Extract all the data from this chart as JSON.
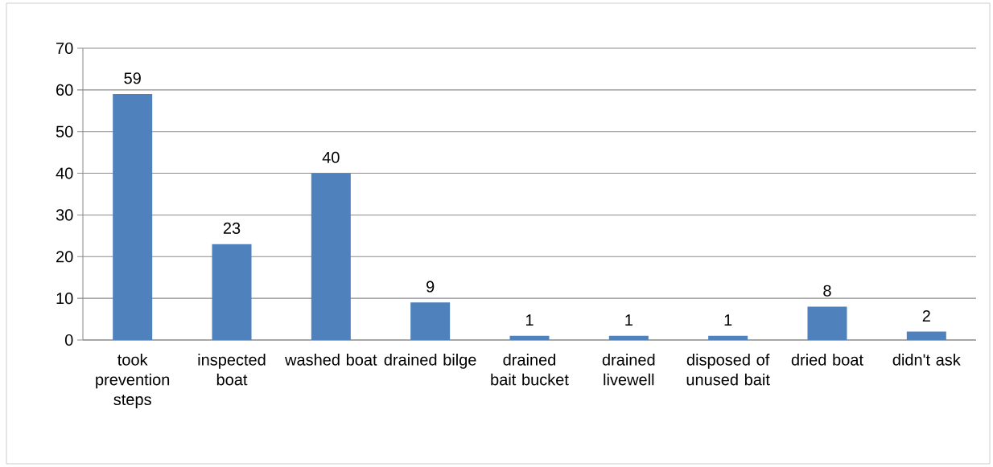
{
  "chart_data": {
    "type": "bar",
    "categories": [
      "took prevention steps",
      "inspected boat",
      "washed boat",
      "drained bilge",
      "drained bait bucket",
      "drained livewell",
      "disposed of unused bait",
      "dried boat",
      "didn't ask"
    ],
    "values": [
      59,
      23,
      40,
      9,
      1,
      1,
      1,
      8,
      2
    ],
    "color": "#4f81bd",
    "ylim": [
      0,
      70
    ],
    "yticks": [
      0,
      10,
      20,
      30,
      40,
      50,
      60,
      70
    ],
    "grid": "y",
    "data_labels": true
  }
}
